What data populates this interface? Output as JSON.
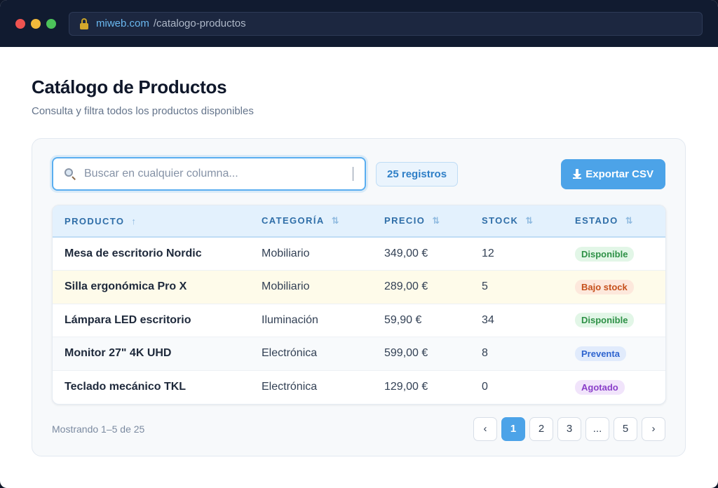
{
  "browser": {
    "url_domain": "miweb.com",
    "url_path": "/catalogo-productos"
  },
  "page": {
    "title": "Catálogo de Productos",
    "subtitle": "Consulta y filtra todos los productos disponibles"
  },
  "toolbar": {
    "search_placeholder": "Buscar en cualquier columna...",
    "count_label": "25 registros",
    "export_label": "Exportar CSV"
  },
  "table": {
    "columns": [
      {
        "label": "PRODUCTO",
        "sort": "↑"
      },
      {
        "label": "CATEGORÍA",
        "sort": "⇅"
      },
      {
        "label": "PRECIO",
        "sort": "⇅"
      },
      {
        "label": "STOCK",
        "sort": "⇅"
      },
      {
        "label": "ESTADO",
        "sort": "⇅"
      }
    ],
    "rows": [
      {
        "product": "Mesa de escritorio Nordic",
        "category": "Mobiliario",
        "price": "349,00 €",
        "stock": "12",
        "status": "Disponible"
      },
      {
        "product": "Silla ergonómica Pro X",
        "category": "Mobiliario",
        "price": "289,00 €",
        "stock": "5",
        "status": "Bajo stock"
      },
      {
        "product": "Lámpara LED escritorio",
        "category": "Iluminación",
        "price": "59,90 €",
        "stock": "34",
        "status": "Disponible"
      },
      {
        "product": "Monitor 27\" 4K UHD",
        "category": "Electrónica",
        "price": "599,00 €",
        "stock": "8",
        "status": "Preventa"
      },
      {
        "product": "Teclado mecánico TKL",
        "category": "Electrónica",
        "price": "129,00 €",
        "stock": "0",
        "status": "Agotado"
      }
    ]
  },
  "footer": {
    "showing": "Mostrando 1–5 de 25",
    "pager": {
      "prev": "‹",
      "pages": [
        "1",
        "2",
        "3",
        "...",
        "5"
      ],
      "next": "›",
      "current": "1"
    }
  },
  "colors": {
    "accent": "#4ca3e8",
    "status_disponible": "#2e9147",
    "status_bajo_stock": "#c6511c",
    "status_preventa": "#2e64cf",
    "status_agotado": "#8a3ec9"
  }
}
